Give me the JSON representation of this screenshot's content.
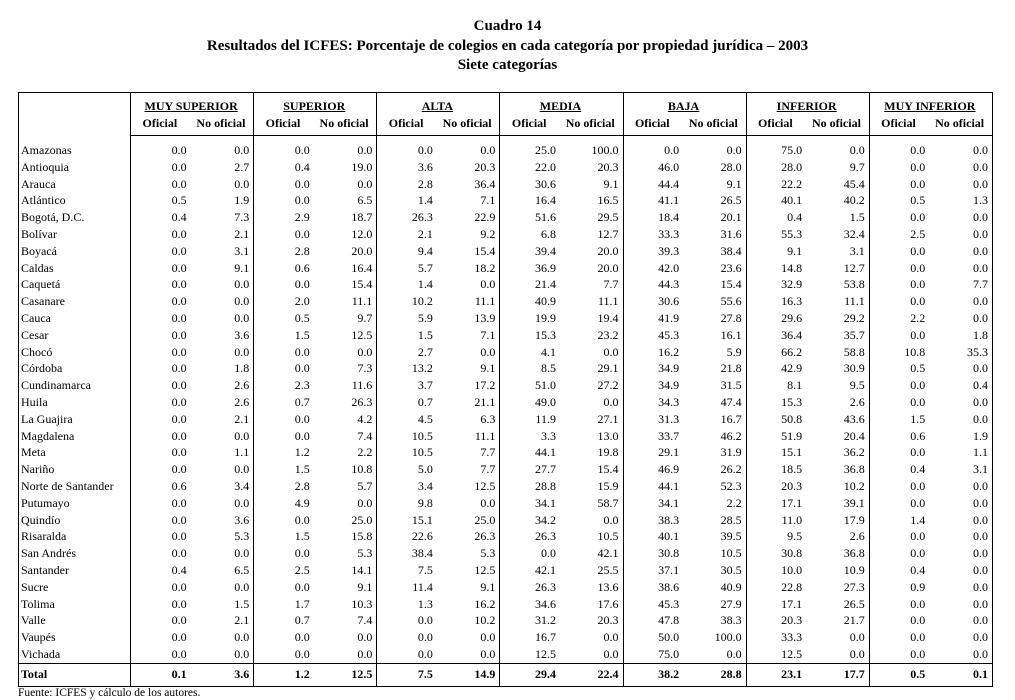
{
  "header": {
    "title": "Cuadro 14",
    "subtitle": "Resultados del ICFES: Porcentaje de colegios en cada categoría por propiedad jurídica – 2003",
    "subtitle2": "Siete categorías"
  },
  "table": {
    "groups": [
      "MUY SUPERIOR",
      "SUPERIOR",
      "ALTA",
      "MEDIA",
      "BAJA",
      "INFERIOR",
      "MUY INFERIOR"
    ],
    "subheaders": [
      "Oficial",
      "No oficial"
    ],
    "rows": [
      [
        "Amazonas",
        "0.0",
        "0.0",
        "0.0",
        "0.0",
        "0.0",
        "0.0",
        "25.0",
        "100.0",
        "0.0",
        "0.0",
        "75.0",
        "0.0",
        "0.0",
        "0.0"
      ],
      [
        "Antioquia",
        "0.0",
        "2.7",
        "0.4",
        "19.0",
        "3.6",
        "20.3",
        "22.0",
        "20.3",
        "46.0",
        "28.0",
        "28.0",
        "9.7",
        "0.0",
        "0.0"
      ],
      [
        "Arauca",
        "0.0",
        "0.0",
        "0.0",
        "0.0",
        "2.8",
        "36.4",
        "30.6",
        "9.1",
        "44.4",
        "9.1",
        "22.2",
        "45.4",
        "0.0",
        "0.0"
      ],
      [
        "Atlántico",
        "0.5",
        "1.9",
        "0.0",
        "6.5",
        "1.4",
        "7.1",
        "16.4",
        "16.5",
        "41.1",
        "26.5",
        "40.1",
        "40.2",
        "0.5",
        "1.3"
      ],
      [
        "Bogotá, D.C.",
        "0.4",
        "7.3",
        "2.9",
        "18.7",
        "26.3",
        "22.9",
        "51.6",
        "29.5",
        "18.4",
        "20.1",
        "0.4",
        "1.5",
        "0.0",
        "0.0"
      ],
      [
        "Bolívar",
        "0.0",
        "2.1",
        "0.0",
        "12.0",
        "2.1",
        "9.2",
        "6.8",
        "12.7",
        "33.3",
        "31.6",
        "55.3",
        "32.4",
        "2.5",
        "0.0"
      ],
      [
        "Boyacá",
        "0.0",
        "3.1",
        "2.8",
        "20.0",
        "9.4",
        "15.4",
        "39.4",
        "20.0",
        "39.3",
        "38.4",
        "9.1",
        "3.1",
        "0.0",
        "0.0"
      ],
      [
        "Caldas",
        "0.0",
        "9.1",
        "0.6",
        "16.4",
        "5.7",
        "18.2",
        "36.9",
        "20.0",
        "42.0",
        "23.6",
        "14.8",
        "12.7",
        "0.0",
        "0.0"
      ],
      [
        "Caquetá",
        "0.0",
        "0.0",
        "0.0",
        "15.4",
        "1.4",
        "0.0",
        "21.4",
        "7.7",
        "44.3",
        "15.4",
        "32.9",
        "53.8",
        "0.0",
        "7.7"
      ],
      [
        "Casanare",
        "0.0",
        "0.0",
        "2.0",
        "11.1",
        "10.2",
        "11.1",
        "40.9",
        "11.1",
        "30.6",
        "55.6",
        "16.3",
        "11.1",
        "0.0",
        "0.0"
      ],
      [
        "Cauca",
        "0.0",
        "0.0",
        "0.5",
        "9.7",
        "5.9",
        "13.9",
        "19.9",
        "19.4",
        "41.9",
        "27.8",
        "29.6",
        "29.2",
        "2.2",
        "0.0"
      ],
      [
        "Cesar",
        "0.0",
        "3.6",
        "1.5",
        "12.5",
        "1.5",
        "7.1",
        "15.3",
        "23.2",
        "45.3",
        "16.1",
        "36.4",
        "35.7",
        "0.0",
        "1.8"
      ],
      [
        "Chocó",
        "0.0",
        "0.0",
        "0.0",
        "0.0",
        "2.7",
        "0.0",
        "4.1",
        "0.0",
        "16.2",
        "5.9",
        "66.2",
        "58.8",
        "10.8",
        "35.3"
      ],
      [
        "Córdoba",
        "0.0",
        "1.8",
        "0.0",
        "7.3",
        "13.2",
        "9.1",
        "8.5",
        "29.1",
        "34.9",
        "21.8",
        "42.9",
        "30.9",
        "0.5",
        "0.0"
      ],
      [
        "Cundinamarca",
        "0.0",
        "2.6",
        "2.3",
        "11.6",
        "3.7",
        "17.2",
        "51.0",
        "27.2",
        "34.9",
        "31.5",
        "8.1",
        "9.5",
        "0.0",
        "0.4"
      ],
      [
        "Huila",
        "0.0",
        "2.6",
        "0.7",
        "26.3",
        "0.7",
        "21.1",
        "49.0",
        "0.0",
        "34.3",
        "47.4",
        "15.3",
        "2.6",
        "0.0",
        "0.0"
      ],
      [
        "La Guajira",
        "0.0",
        "2.1",
        "0.0",
        "4.2",
        "4.5",
        "6.3",
        "11.9",
        "27.1",
        "31.3",
        "16.7",
        "50.8",
        "43.6",
        "1.5",
        "0.0"
      ],
      [
        "Magdalena",
        "0.0",
        "0.0",
        "0.0",
        "7.4",
        "10.5",
        "11.1",
        "3.3",
        "13.0",
        "33.7",
        "46.2",
        "51.9",
        "20.4",
        "0.6",
        "1.9"
      ],
      [
        "Meta",
        "0.0",
        "1.1",
        "1.2",
        "2.2",
        "10.5",
        "7.7",
        "44.1",
        "19.8",
        "29.1",
        "31.9",
        "15.1",
        "36.2",
        "0.0",
        "1.1"
      ],
      [
        "Nariño",
        "0.0",
        "0.0",
        "1.5",
        "10.8",
        "5.0",
        "7.7",
        "27.7",
        "15.4",
        "46.9",
        "26.2",
        "18.5",
        "36.8",
        "0.4",
        "3.1"
      ],
      [
        "Norte de Santander",
        "0.6",
        "3.4",
        "2.8",
        "5.7",
        "3.4",
        "12.5",
        "28.8",
        "15.9",
        "44.1",
        "52.3",
        "20.3",
        "10.2",
        "0.0",
        "0.0"
      ],
      [
        "Putumayo",
        "0.0",
        "0.0",
        "4.9",
        "0.0",
        "9.8",
        "0.0",
        "34.1",
        "58.7",
        "34.1",
        "2.2",
        "17.1",
        "39.1",
        "0.0",
        "0.0"
      ],
      [
        "Quindío",
        "0.0",
        "3.6",
        "0.0",
        "25.0",
        "15.1",
        "25.0",
        "34.2",
        "0.0",
        "38.3",
        "28.5",
        "11.0",
        "17.9",
        "1.4",
        "0.0"
      ],
      [
        "Risaralda",
        "0.0",
        "5.3",
        "1.5",
        "15.8",
        "22.6",
        "26.3",
        "26.3",
        "10.5",
        "40.1",
        "39.5",
        "9.5",
        "2.6",
        "0.0",
        "0.0"
      ],
      [
        "San Andrés",
        "0.0",
        "0.0",
        "0.0",
        "5.3",
        "38.4",
        "5.3",
        "0.0",
        "42.1",
        "30.8",
        "10.5",
        "30.8",
        "36.8",
        "0.0",
        "0.0"
      ],
      [
        "Santander",
        "0.4",
        "6.5",
        "2.5",
        "14.1",
        "7.5",
        "12.5",
        "42.1",
        "25.5",
        "37.1",
        "30.5",
        "10.0",
        "10.9",
        "0.4",
        "0.0"
      ],
      [
        "Sucre",
        "0.0",
        "0.0",
        "0.0",
        "9.1",
        "11.4",
        "9.1",
        "26.3",
        "13.6",
        "38.6",
        "40.9",
        "22.8",
        "27.3",
        "0.9",
        "0.0"
      ],
      [
        "Tolima",
        "0.0",
        "1.5",
        "1.7",
        "10.3",
        "1.3",
        "16.2",
        "34.6",
        "17.6",
        "45.3",
        "27.9",
        "17.1",
        "26.5",
        "0.0",
        "0.0"
      ],
      [
        "Valle",
        "0.0",
        "2.1",
        "0.7",
        "7.4",
        "0.0",
        "10.2",
        "31.2",
        "20.3",
        "47.8",
        "38.3",
        "20.3",
        "21.7",
        "0.0",
        "0.0"
      ],
      [
        "Vaupés",
        "0.0",
        "0.0",
        "0.0",
        "0.0",
        "0.0",
        "0.0",
        "16.7",
        "0.0",
        "50.0",
        "100.0",
        "33.3",
        "0.0",
        "0.0",
        "0.0"
      ],
      [
        "Vichada",
        "0.0",
        "0.0",
        "0.0",
        "0.0",
        "0.0",
        "0.0",
        "12.5",
        "0.0",
        "75.0",
        "0.0",
        "12.5",
        "0.0",
        "0.0",
        "0.0"
      ]
    ],
    "total": [
      "Total",
      "0.1",
      "3.6",
      "1.2",
      "12.5",
      "7.5",
      "14.9",
      "29.4",
      "22.4",
      "38.2",
      "28.8",
      "23.1",
      "17.7",
      "0.5",
      "0.1"
    ]
  },
  "footer": "Fuente: ICFES y cálculo de los autores."
}
